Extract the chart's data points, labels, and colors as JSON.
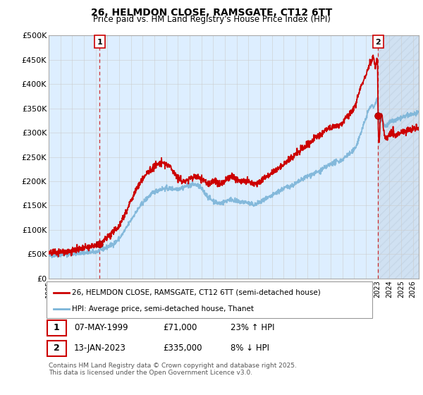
{
  "title1": "26, HELMDON CLOSE, RAMSGATE, CT12 6TT",
  "title2": "Price paid vs. HM Land Registry's House Price Index (HPI)",
  "ylim": [
    0,
    500000
  ],
  "yticks": [
    0,
    50000,
    100000,
    150000,
    200000,
    250000,
    300000,
    350000,
    400000,
    450000,
    500000
  ],
  "ytick_labels": [
    "£0",
    "£50K",
    "£100K",
    "£150K",
    "£200K",
    "£250K",
    "£300K",
    "£350K",
    "£400K",
    "£450K",
    "£500K"
  ],
  "xlim_start": 1995.0,
  "xlim_end": 2026.5,
  "xticks": [
    1995,
    1996,
    1997,
    1998,
    1999,
    2000,
    2001,
    2002,
    2003,
    2004,
    2005,
    2006,
    2007,
    2008,
    2009,
    2010,
    2011,
    2012,
    2013,
    2014,
    2015,
    2016,
    2017,
    2018,
    2019,
    2020,
    2021,
    2022,
    2023,
    2024,
    2025,
    2026
  ],
  "hpi_color": "#7ab4d8",
  "price_color": "#cc0000",
  "grid_color": "#cccccc",
  "chart_bg": "#ddeeff",
  "hatch_color": "#bbccdd",
  "bg_color": "#ffffff",
  "legend_label1": "26, HELMDON CLOSE, RAMSGATE, CT12 6TT (semi-detached house)",
  "legend_label2": "HPI: Average price, semi-detached house, Thanet",
  "transaction1_date": "07-MAY-1999",
  "transaction1_price": "£71,000",
  "transaction1_hpi": "23% ↑ HPI",
  "transaction2_date": "13-JAN-2023",
  "transaction2_price": "£335,000",
  "transaction2_hpi": "8% ↓ HPI",
  "copyright": "Contains HM Land Registry data © Crown copyright and database right 2025.\nThis data is licensed under the Open Government Licence v3.0.",
  "marker1_x": 1999.35,
  "marker1_y": 71000,
  "marker2_x": 2023.04,
  "marker2_y": 335000,
  "hatch_start": 2023.04
}
